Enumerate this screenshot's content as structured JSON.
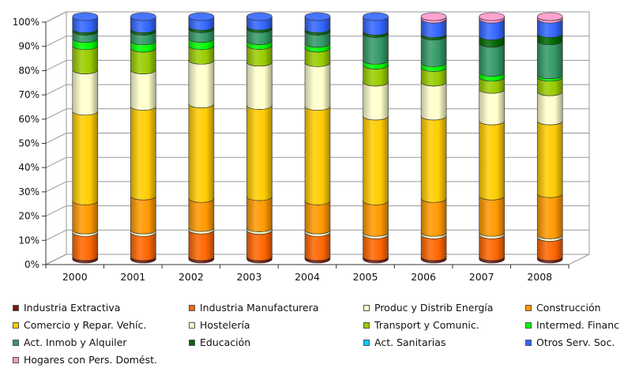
{
  "chart_data": {
    "type": "bar",
    "stacked": true,
    "normalized_percent": true,
    "three_d": true,
    "categories": [
      "2000",
      "2001",
      "2002",
      "2003",
      "2004",
      "2005",
      "2006",
      "2007",
      "2008"
    ],
    "y_ticks": [
      "0%",
      "10%",
      "20%",
      "30%",
      "40%",
      "50%",
      "60%",
      "70%",
      "80%",
      "90%",
      "100%"
    ],
    "ylim": [
      0,
      100
    ],
    "grid": true,
    "legend_position": "bottom",
    "series": [
      {
        "name": "Industria Extractiva",
        "color": "#7b1a10",
        "values": [
          1,
          1,
          1,
          1,
          1,
          1,
          1,
          1,
          1
        ]
      },
      {
        "name": "Industria Manufacturera",
        "color": "#ff6600",
        "values": [
          10,
          10,
          11,
          11,
          10,
          9,
          9,
          9,
          8
        ]
      },
      {
        "name": "Produc y Distrib Energía",
        "color": "#ffffcc",
        "values": [
          1,
          1,
          1,
          1,
          1,
          1,
          1,
          1,
          1
        ]
      },
      {
        "name": "Construcción",
        "color": "#ff9900",
        "values": [
          12,
          14,
          12,
          13,
          12,
          13,
          14,
          15,
          17
        ]
      },
      {
        "name": "Comercio y Repar. Vehíc.",
        "color": "#ffcc00",
        "values": [
          37,
          37,
          39,
          38,
          39,
          35,
          34,
          31,
          30
        ]
      },
      {
        "name": "Hostelería",
        "color": "#ffffcc",
        "values": [
          17,
          15,
          18,
          18,
          18,
          14,
          14,
          13,
          12
        ]
      },
      {
        "name": "Transport y Comunic.",
        "color": "#99cc00",
        "values": [
          10,
          9,
          6,
          7,
          6,
          7,
          6,
          5,
          6
        ]
      },
      {
        "name": "Intermed. Financ",
        "color": "#00ff00",
        "values": [
          3,
          3,
          3,
          2,
          2,
          2,
          2,
          2,
          1
        ]
      },
      {
        "name": "Act. Inmob y Alquiler",
        "color": "#339966",
        "values": [
          3,
          4,
          4,
          5,
          5,
          11,
          11,
          12,
          14
        ]
      },
      {
        "name": "Educación",
        "color": "#006600",
        "values": [
          1,
          1,
          1,
          1,
          1,
          1,
          1,
          3,
          3
        ]
      },
      {
        "name": "Act. Sanitarias",
        "color": "#00ccff",
        "values": [
          0,
          0,
          0,
          0,
          0,
          0,
          0,
          0,
          0
        ]
      },
      {
        "name": "Otros Serv. Soc.",
        "color": "#3366ff",
        "values": [
          5,
          5,
          4,
          4,
          5,
          6,
          6,
          7,
          6
        ]
      },
      {
        "name": "Hogares con Pers. Domést.",
        "color": "#ff99cc",
        "values": [
          0,
          0,
          0,
          0,
          0,
          0,
          1,
          1,
          1
        ]
      }
    ]
  }
}
